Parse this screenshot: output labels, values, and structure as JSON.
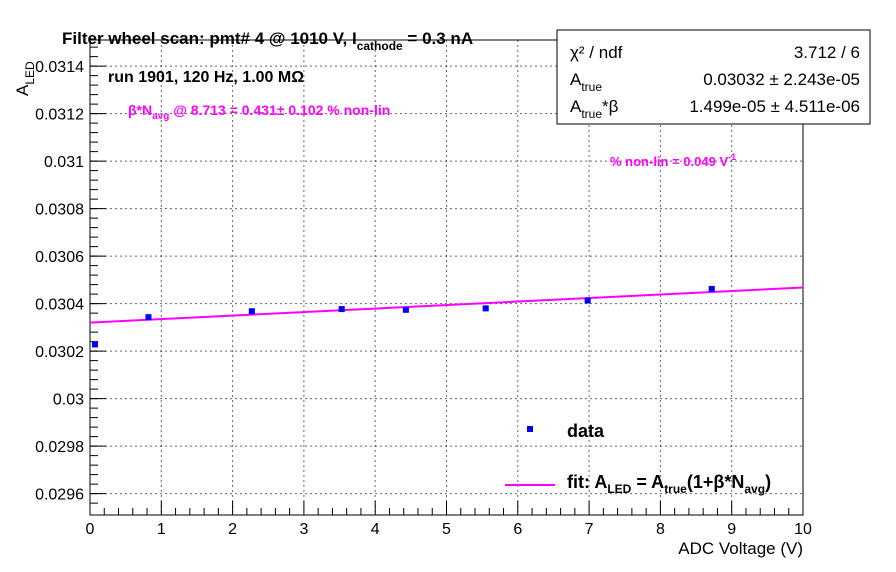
{
  "chart_data": {
    "type": "scatter",
    "title": "Filter wheel scan: pmt#   4 @  1010 V, I",
    "title_sub": "cathode",
    "title_tail": " = 0.3 nA",
    "run_info": "run 1901, 120 Hz, 1.00 MΩ",
    "annotation_beta_pre": "β*N",
    "annotation_beta_sub": "avg",
    "annotation_beta_post": " @ 8.713 = 0.431± 0.102 % non-lin",
    "annotation_nonlin": "% non-lin = 0.049 V",
    "annotation_nonlin_sup": "-1",
    "xlabel": "ADC Voltage (V)",
    "ylabel_main": "A",
    "ylabel_sub": "LED",
    "xlim": [
      0,
      10
    ],
    "ylim": [
      0.02951,
      0.03151
    ],
    "xticks": [
      0,
      1,
      2,
      3,
      4,
      5,
      6,
      7,
      8,
      9,
      10
    ],
    "xtick_labels": [
      "0",
      "1",
      "2",
      "3",
      "4",
      "5",
      "6",
      "7",
      "8",
      "9",
      "10"
    ],
    "yticks": [
      0.0296,
      0.0298,
      0.03,
      0.0302,
      0.0304,
      0.0306,
      0.0308,
      0.031,
      0.0312,
      0.0314
    ],
    "ytick_labels": [
      "0.0296",
      "0.0298",
      "0.03",
      "0.0302",
      "0.0304",
      "0.0306",
      "0.0308",
      "0.031",
      "0.0312",
      "0.0314"
    ],
    "grid": true,
    "series": [
      {
        "type": "points",
        "color": "#0000ff",
        "x": [
          0.07,
          0.82,
          2.27,
          3.53,
          4.43,
          5.55,
          6.98,
          8.72
        ],
        "y": [
          0.030228,
          0.030343,
          0.030368,
          0.030377,
          0.030374,
          0.03038,
          0.030413,
          0.030462
        ],
        "yerr": [
          7e-06,
          6e-06,
          6e-06,
          6e-06,
          7e-06,
          6e-06,
          6e-06,
          8e-06
        ]
      },
      {
        "type": "line",
        "color": "#ff00ff",
        "x": [
          0,
          10
        ],
        "y": [
          0.03032,
          0.030468
        ]
      }
    ],
    "stats_box": {
      "rows": [
        {
          "name": "χ² / ndf",
          "value": "3.712 / 6"
        },
        {
          "name_main": "A",
          "name_sub": "true",
          "name_tail": "",
          "value": "0.03032 ± 2.243e-05"
        },
        {
          "name_main": "A",
          "name_sub": "true",
          "name_tail": "*β",
          "value": "1.499e-05 ± 4.511e-06"
        }
      ]
    },
    "legend": {
      "placement": "bottom-right",
      "entries": [
        {
          "label": "data",
          "marker": "point",
          "color": "#0000ff"
        },
        {
          "label_pre": "fit: A",
          "label_sub1": "LED",
          "label_mid": " = A",
          "label_sub2": "true",
          "label_mid2": "(1+β*N",
          "label_sub3": "avg",
          "label_post": ")",
          "marker": "line",
          "color": "#ff00ff"
        }
      ]
    }
  }
}
